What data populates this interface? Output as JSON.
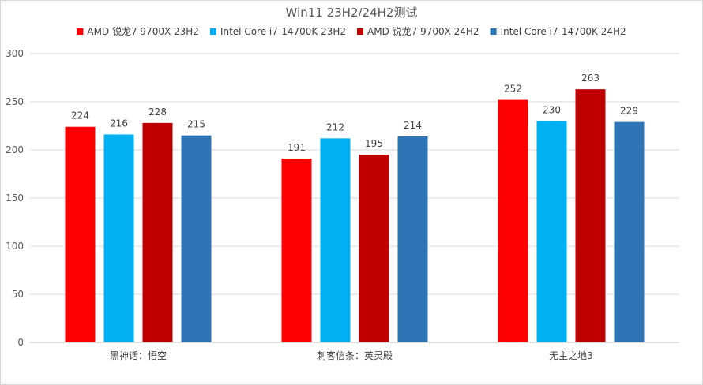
{
  "chart_data": {
    "type": "bar",
    "title": "Win11 23H2/24H2测试",
    "categories": [
      "黑神话：悟空",
      "刺客信条：英灵殿",
      "无主之地3"
    ],
    "series": [
      {
        "name": "AMD 锐龙7 9700X 23H2",
        "color": "#ff0000",
        "values": [
          224,
          191,
          252
        ]
      },
      {
        "name": "Intel Core i7-14700K 23H2",
        "color": "#00b0f0",
        "values": [
          216,
          212,
          230
        ]
      },
      {
        "name": "AMD 锐龙7 9700X 24H2",
        "color": "#c00000",
        "values": [
          228,
          195,
          263
        ]
      },
      {
        "name": "Intel Core i7-14700K 24H2",
        "color": "#2e75b6",
        "values": [
          215,
          214,
          229
        ]
      }
    ],
    "ylim": [
      0,
      300
    ],
    "yticks": [
      0,
      50,
      100,
      150,
      200,
      250,
      300
    ],
    "grid": true,
    "legend_position": "top"
  }
}
